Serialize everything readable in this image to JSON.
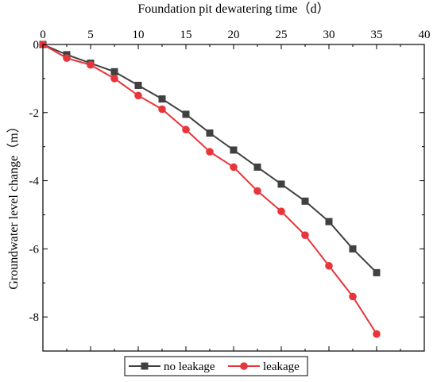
{
  "chart_data": {
    "type": "line",
    "xlabel": "Foundation pit dewatering time（d）",
    "ylabel": "Groundwater level change（m）",
    "x_axis_position": "top",
    "xlim": [
      0,
      40
    ],
    "ylim": [
      -9,
      0
    ],
    "xticks": [
      "0",
      "5",
      "10",
      "15",
      "20",
      "25",
      "30",
      "35",
      "40"
    ],
    "yticks": [
      "0",
      "-2",
      "-4",
      "-6",
      "-8"
    ],
    "grid": false,
    "legend_position": "bottom-center",
    "x": [
      0,
      2.5,
      5,
      7.5,
      10,
      12.5,
      15,
      17.5,
      20,
      22.5,
      25,
      27.5,
      30,
      32.5,
      35
    ],
    "series": [
      {
        "name": "no leakage",
        "marker": "square",
        "color": "#404040",
        "values": [
          0,
          -0.3,
          -0.55,
          -0.8,
          -1.2,
          -1.6,
          -2.05,
          -2.6,
          -3.1,
          -3.6,
          -4.1,
          -4.6,
          -5.2,
          -6.0,
          -6.7
        ]
      },
      {
        "name": "leakage",
        "marker": "circle",
        "color": "#e8353b",
        "values": [
          0,
          -0.4,
          -0.6,
          -1.0,
          -1.5,
          -1.9,
          -2.5,
          -3.15,
          -3.6,
          -4.3,
          -4.9,
          -5.6,
          -6.5,
          -7.4,
          -8.5
        ]
      }
    ]
  }
}
